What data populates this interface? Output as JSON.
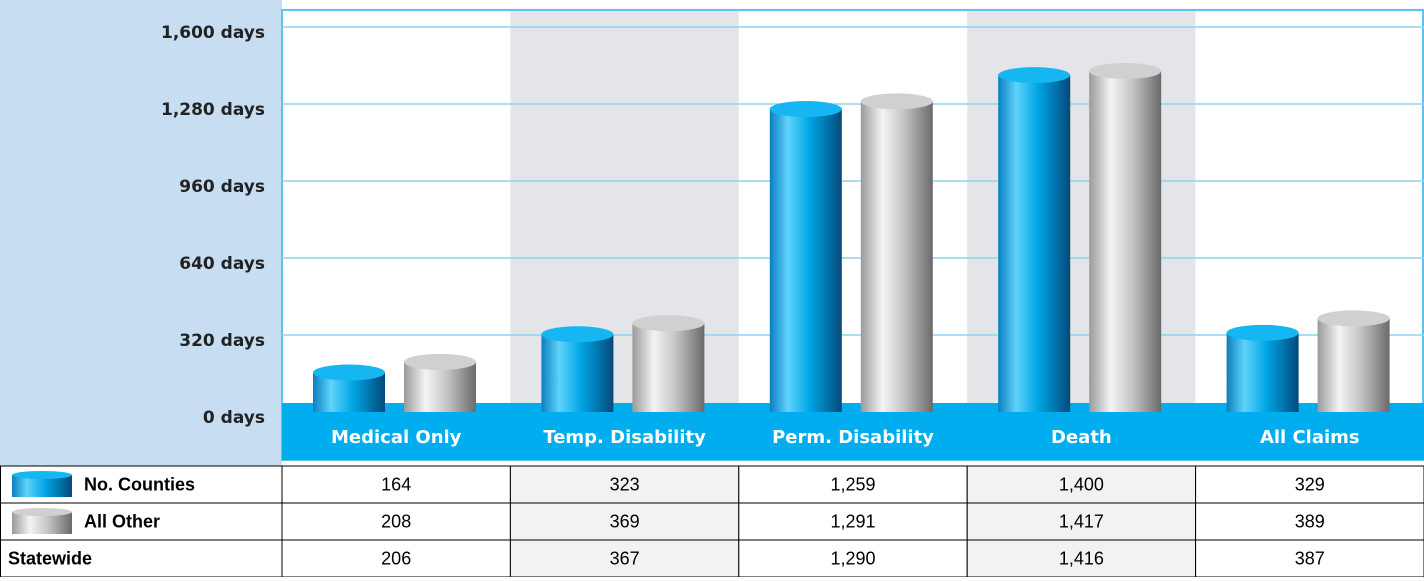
{
  "chart_data": {
    "type": "bar",
    "categories": [
      "Medical Only",
      "Temp. Disability",
      "Perm. Disability",
      "Death",
      "All Claims"
    ],
    "series": [
      {
        "name": "No. Counties",
        "color": "#00a6e6",
        "values": [
          164,
          323,
          1259,
          1400,
          329
        ],
        "value_labels": [
          "164",
          "323",
          "1,259",
          "1,400",
          "329"
        ]
      },
      {
        "name": "All Other",
        "color": "#a8a8a8",
        "values": [
          208,
          369,
          1291,
          1417,
          389
        ],
        "value_labels": [
          "208",
          "369",
          "1,291",
          "1,417",
          "389"
        ]
      }
    ],
    "statewide": {
      "name": "Statewide",
      "values": [
        206,
        367,
        1290,
        1416,
        387
      ],
      "value_labels": [
        "206",
        "367",
        "1,290",
        "1,416",
        "387"
      ]
    },
    "ylim": [
      0,
      1600
    ],
    "yticks": [
      {
        "value": 0,
        "label": "0 days"
      },
      {
        "value": 320,
        "label": "320 days"
      },
      {
        "value": 640,
        "label": "640 days"
      },
      {
        "value": 960,
        "label": "960 days"
      },
      {
        "value": 1280,
        "label": "1,280 days"
      },
      {
        "value": 1600,
        "label": "1,600 days"
      }
    ],
    "grid": true
  }
}
